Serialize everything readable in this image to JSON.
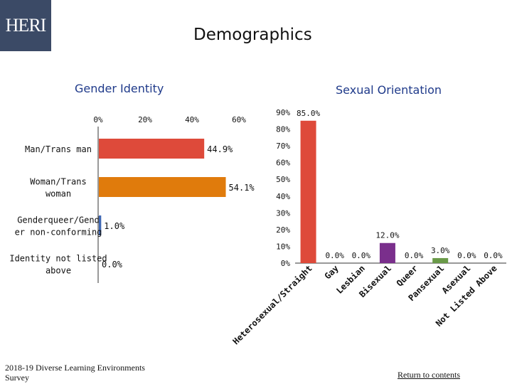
{
  "logo": {
    "text": "HERI"
  },
  "title": "Demographics",
  "footer": {
    "source": "2018-19 Diverse Learning Environments Survey",
    "link": "Return to contents"
  },
  "chart_data": [
    {
      "type": "bar",
      "orientation": "horizontal",
      "title": "Gender Identity",
      "categories": [
        "Man/Trans man",
        "Woman/Trans woman",
        "Genderqueer/Gender non-conforming",
        "Identity not listed above"
      ],
      "category_lines": [
        [
          "Man/Trans man"
        ],
        [
          "Woman/Trans",
          "woman"
        ],
        [
          "Genderqueer/Gend",
          "er non-conforming"
        ],
        [
          "Identity not listed",
          "above"
        ]
      ],
      "values": [
        44.9,
        54.1,
        1.0,
        0.0
      ],
      "data_labels": [
        "44.9%",
        "54.1%",
        "1.0%",
        "0.0%"
      ],
      "colors": [
        "#de4a3a",
        "#e07b0c",
        "#3f68b4",
        "#888888"
      ],
      "xlim": [
        0,
        60
      ],
      "xticks": [
        0,
        20,
        40,
        60
      ],
      "xtick_labels": [
        "0%",
        "20%",
        "40%",
        "60%"
      ],
      "grid": false
    },
    {
      "type": "bar",
      "title": "Sexual Orientation",
      "categories": [
        "Heterosexual/Straight",
        "Gay",
        "Lesbian",
        "Bisexual",
        "Queer",
        "Pansexual",
        "Asexual",
        "Not Listed Above"
      ],
      "category_lines": [
        [
          "Heterosexual/Straight"
        ],
        [
          "Gay"
        ],
        [
          "Lesbian"
        ],
        [
          "Bisexual"
        ],
        [
          "Queer"
        ],
        [
          "Pansexual"
        ],
        [
          "Asexual"
        ],
        [
          "Not Listed Above"
        ]
      ],
      "values": [
        85.0,
        0.0,
        0.0,
        12.0,
        0.0,
        3.0,
        0.0,
        0.0
      ],
      "data_labels": [
        "85.0%",
        "0.0%",
        "0.0%",
        "12.0%",
        "0.0%",
        "3.0%",
        "0.0%",
        "0.0%"
      ],
      "colors": [
        "#de4a3a",
        "#de4a3a",
        "#de4a3a",
        "#7a2f8c",
        "#7a2f8c",
        "#6a9a48",
        "#6a9a48",
        "#6a9a48"
      ],
      "ylim": [
        0,
        90
      ],
      "yticks": [
        0,
        10,
        20,
        30,
        40,
        50,
        60,
        70,
        80,
        90
      ],
      "ytick_labels": [
        "0%",
        "10%",
        "20%",
        "30%",
        "40%",
        "50%",
        "60%",
        "70%",
        "80%",
        "90%"
      ],
      "grid": false
    }
  ]
}
